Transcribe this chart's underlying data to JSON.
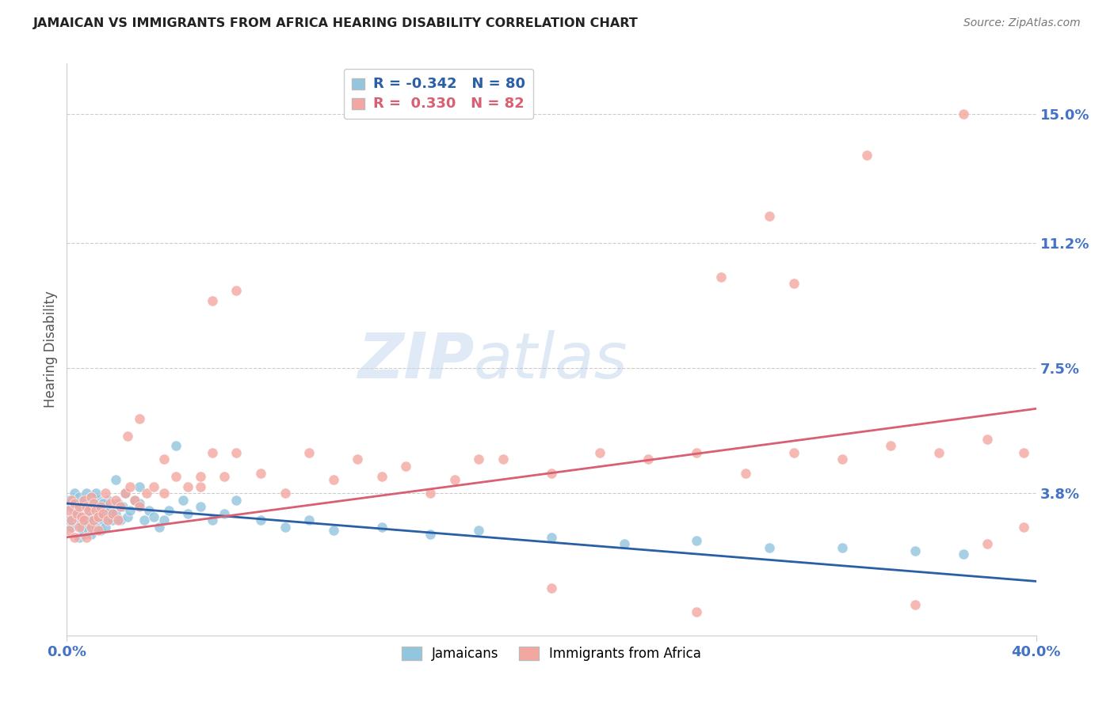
{
  "title": "JAMAICAN VS IMMIGRANTS FROM AFRICA HEARING DISABILITY CORRELATION CHART",
  "source": "Source: ZipAtlas.com",
  "ylabel": "Hearing Disability",
  "watermark_zip": "ZIP",
  "watermark_atlas": "atlas",
  "xlim": [
    0.0,
    0.4
  ],
  "ylim": [
    -0.004,
    0.165
  ],
  "ytick_positions": [
    0.038,
    0.075,
    0.112,
    0.15
  ],
  "ytick_labels": [
    "3.8%",
    "7.5%",
    "11.2%",
    "15.0%"
  ],
  "hlines": [
    0.038,
    0.075,
    0.112,
    0.15
  ],
  "blue_R": "-0.342",
  "blue_N": "80",
  "pink_R": "0.330",
  "pink_N": "82",
  "blue_color": "#92c5de",
  "pink_color": "#f4a6a0",
  "blue_line_color": "#2b5fa5",
  "pink_line_color": "#d95f72",
  "title_color": "#222222",
  "axis_label_color": "#555555",
  "ytick_color": "#4472c4",
  "source_color": "#777777",
  "legend_label_blue": "Jamaicans",
  "legend_label_pink": "Immigrants from Africa",
  "blue_trend_x": [
    0.0,
    0.4
  ],
  "blue_trend_y": [
    0.035,
    0.012
  ],
  "pink_trend_x": [
    0.0,
    0.4
  ],
  "pink_trend_y": [
    0.025,
    0.063
  ],
  "blue_scatter_x": [
    0.001,
    0.001,
    0.002,
    0.002,
    0.003,
    0.003,
    0.004,
    0.004,
    0.005,
    0.005,
    0.005,
    0.006,
    0.006,
    0.007,
    0.007,
    0.007,
    0.008,
    0.008,
    0.008,
    0.009,
    0.009,
    0.01,
    0.01,
    0.01,
    0.011,
    0.011,
    0.012,
    0.012,
    0.013,
    0.013,
    0.014,
    0.014,
    0.015,
    0.015,
    0.016,
    0.016,
    0.017,
    0.017,
    0.018,
    0.019,
    0.02,
    0.021,
    0.022,
    0.023,
    0.024,
    0.025,
    0.026,
    0.028,
    0.03,
    0.032,
    0.034,
    0.036,
    0.038,
    0.04,
    0.042,
    0.045,
    0.048,
    0.05,
    0.055,
    0.06,
    0.065,
    0.07,
    0.08,
    0.09,
    0.1,
    0.11,
    0.13,
    0.15,
    0.17,
    0.2,
    0.23,
    0.26,
    0.29,
    0.32,
    0.35,
    0.37,
    0.03,
    0.02,
    0.015,
    0.012
  ],
  "blue_scatter_y": [
    0.036,
    0.03,
    0.034,
    0.028,
    0.033,
    0.038,
    0.032,
    0.035,
    0.03,
    0.037,
    0.025,
    0.034,
    0.028,
    0.036,
    0.031,
    0.026,
    0.035,
    0.029,
    0.038,
    0.033,
    0.027,
    0.037,
    0.031,
    0.026,
    0.035,
    0.03,
    0.034,
    0.028,
    0.036,
    0.031,
    0.033,
    0.027,
    0.035,
    0.03,
    0.034,
    0.028,
    0.036,
    0.031,
    0.033,
    0.03,
    0.032,
    0.035,
    0.03,
    0.034,
    0.038,
    0.031,
    0.033,
    0.036,
    0.035,
    0.03,
    0.033,
    0.031,
    0.028,
    0.03,
    0.033,
    0.052,
    0.036,
    0.032,
    0.034,
    0.03,
    0.032,
    0.036,
    0.03,
    0.028,
    0.03,
    0.027,
    0.028,
    0.026,
    0.027,
    0.025,
    0.023,
    0.024,
    0.022,
    0.022,
    0.021,
    0.02,
    0.04,
    0.042,
    0.035,
    0.038
  ],
  "pink_scatter_x": [
    0.001,
    0.001,
    0.002,
    0.002,
    0.003,
    0.003,
    0.004,
    0.005,
    0.005,
    0.006,
    0.007,
    0.007,
    0.008,
    0.008,
    0.009,
    0.01,
    0.01,
    0.011,
    0.011,
    0.012,
    0.013,
    0.013,
    0.014,
    0.015,
    0.016,
    0.017,
    0.018,
    0.019,
    0.02,
    0.021,
    0.022,
    0.024,
    0.026,
    0.028,
    0.03,
    0.033,
    0.036,
    0.04,
    0.045,
    0.05,
    0.055,
    0.06,
    0.065,
    0.07,
    0.08,
    0.09,
    0.1,
    0.11,
    0.12,
    0.13,
    0.14,
    0.15,
    0.16,
    0.17,
    0.18,
    0.2,
    0.22,
    0.24,
    0.26,
    0.28,
    0.3,
    0.32,
    0.34,
    0.36,
    0.38,
    0.395,
    0.025,
    0.03,
    0.04,
    0.055,
    0.2,
    0.26,
    0.3,
    0.35,
    0.38,
    0.395,
    0.06,
    0.07,
    0.27,
    0.29,
    0.33,
    0.37
  ],
  "pink_scatter_y": [
    0.033,
    0.027,
    0.036,
    0.03,
    0.035,
    0.025,
    0.032,
    0.034,
    0.028,
    0.031,
    0.036,
    0.03,
    0.034,
    0.025,
    0.033,
    0.037,
    0.028,
    0.035,
    0.03,
    0.033,
    0.031,
    0.027,
    0.034,
    0.032,
    0.038,
    0.03,
    0.035,
    0.032,
    0.036,
    0.03,
    0.034,
    0.038,
    0.04,
    0.036,
    0.034,
    0.038,
    0.04,
    0.038,
    0.043,
    0.04,
    0.04,
    0.05,
    0.043,
    0.05,
    0.044,
    0.038,
    0.05,
    0.042,
    0.048,
    0.043,
    0.046,
    0.038,
    0.042,
    0.048,
    0.048,
    0.044,
    0.05,
    0.048,
    0.05,
    0.044,
    0.05,
    0.048,
    0.052,
    0.05,
    0.054,
    0.05,
    0.055,
    0.06,
    0.048,
    0.043,
    0.01,
    0.003,
    0.1,
    0.005,
    0.023,
    0.028,
    0.095,
    0.098,
    0.102,
    0.12,
    0.138,
    0.15
  ]
}
